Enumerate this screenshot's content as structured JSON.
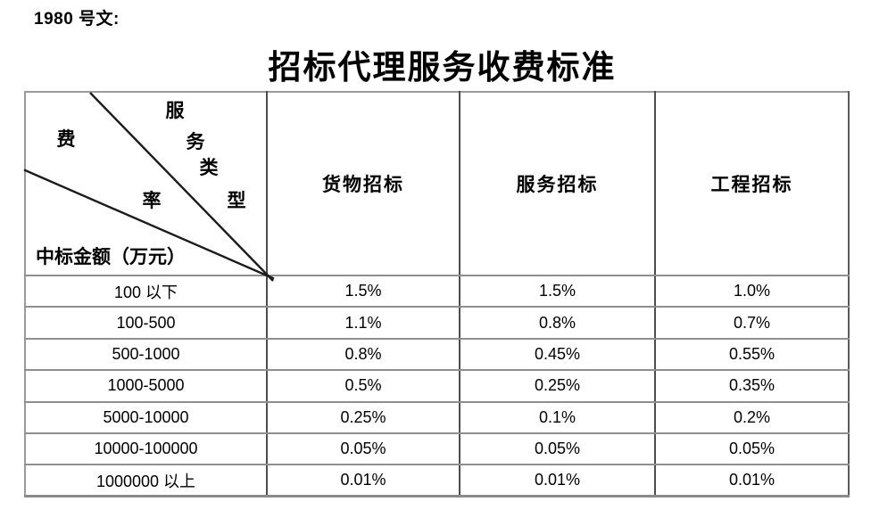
{
  "doc_label": "1980 号文:",
  "title": "招标代理服务收费标准",
  "table": {
    "corner": {
      "service_type_chars": [
        "服",
        "务",
        "类",
        "型"
      ],
      "fee_rate_chars": [
        "费",
        "率"
      ],
      "bottom_label": "中标金额（万元）"
    },
    "columns": [
      "货物招标",
      "服务招标",
      "工程招标"
    ],
    "rows": [
      {
        "label": "100 以下",
        "values": [
          "1.5%",
          "1.5%",
          "1.0%"
        ]
      },
      {
        "label": "100-500",
        "values": [
          "1.1%",
          "0.8%",
          "0.7%"
        ]
      },
      {
        "label": "500-1000",
        "values": [
          "0.8%",
          "0.45%",
          "0.55%"
        ]
      },
      {
        "label": "1000-5000",
        "values": [
          "0.5%",
          "0.25%",
          "0.35%"
        ]
      },
      {
        "label": "5000-10000",
        "values": [
          "0.25%",
          "0.1%",
          "0.2%"
        ]
      },
      {
        "label": "10000-100000",
        "values": [
          "0.05%",
          "0.05%",
          "0.05%"
        ]
      },
      {
        "label": "1000000 以上",
        "values": [
          "0.01%",
          "0.01%",
          "0.01%"
        ]
      }
    ]
  },
  "colors": {
    "background": "#ffffff",
    "text": "#000000",
    "grid_horizontal": "#8f8f8f",
    "grid_vertical": "#4d4d4d",
    "diagonal_line": "#1c1c1c"
  }
}
